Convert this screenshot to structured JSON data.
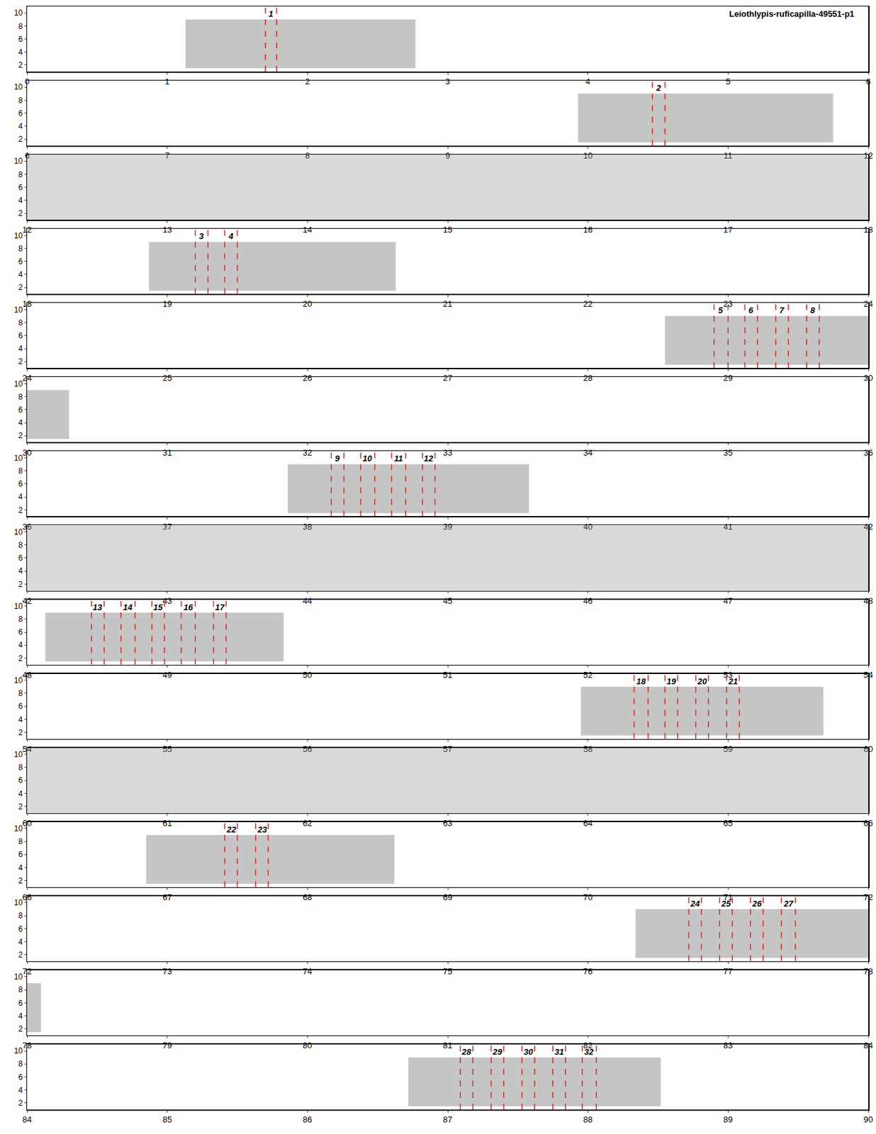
{
  "chart_data": {
    "type": "spectrogram",
    "title": "Leiothlypis-ruficapilla-49551-p1",
    "ylim": [
      1,
      11
    ],
    "yticks": [
      2,
      4,
      6,
      8,
      10
    ],
    "color": "#e02020",
    "panels": [
      {
        "xlim": [
          0,
          6
        ],
        "xticks": [
          0,
          1,
          2,
          3,
          4,
          5,
          6
        ]
      },
      {
        "xlim": [
          6,
          12
        ],
        "xticks": [
          6,
          7,
          8,
          9,
          10,
          11,
          12
        ]
      },
      {
        "xlim": [
          12,
          18
        ],
        "xticks": [
          12,
          13,
          14,
          15,
          16,
          17,
          18
        ]
      },
      {
        "xlim": [
          18,
          24
        ],
        "xticks": [
          18,
          19,
          20,
          21,
          22,
          23,
          24
        ]
      },
      {
        "xlim": [
          24,
          30
        ],
        "xticks": [
          24,
          25,
          26,
          27,
          28,
          29,
          30
        ]
      },
      {
        "xlim": [
          30,
          36
        ],
        "xticks": [
          30,
          31,
          32,
          33,
          34,
          35,
          36
        ]
      },
      {
        "xlim": [
          36,
          42
        ],
        "xticks": [
          36,
          37,
          38,
          39,
          40,
          41,
          42
        ]
      },
      {
        "xlim": [
          42,
          48
        ],
        "xticks": [
          42,
          43,
          44,
          45,
          46,
          47,
          48
        ]
      },
      {
        "xlim": [
          48,
          54
        ],
        "xticks": [
          48,
          49,
          50,
          51,
          52,
          53,
          54
        ]
      },
      {
        "xlim": [
          54,
          60
        ],
        "xticks": [
          54,
          55,
          56,
          57,
          58,
          59,
          60
        ]
      },
      {
        "xlim": [
          60,
          66
        ],
        "xticks": [
          60,
          61,
          62,
          63,
          64,
          65,
          66
        ]
      },
      {
        "xlim": [
          66,
          72
        ],
        "xticks": [
          66,
          67,
          68,
          69,
          70,
          71,
          72
        ]
      },
      {
        "xlim": [
          72,
          78
        ],
        "xticks": [
          72,
          73,
          74,
          75,
          76,
          77,
          78
        ]
      },
      {
        "xlim": [
          78,
          84
        ],
        "xticks": [
          78,
          79,
          80,
          81,
          82,
          83,
          84
        ]
      },
      {
        "xlim": [
          84,
          90
        ],
        "xticks": [
          84,
          85,
          86,
          87,
          88,
          89,
          90
        ]
      }
    ],
    "songs": [
      {
        "start": 1.13,
        "end": 2.77,
        "fmin": 1.5,
        "fmax": 9
      },
      {
        "start": 9.93,
        "end": 11.75,
        "fmin": 1.5,
        "fmax": 9
      },
      {
        "start": 18.87,
        "end": 20.63,
        "fmin": 1.5,
        "fmax": 9
      },
      {
        "start": 28.55,
        "end": 30.3,
        "fmin": 1.5,
        "fmax": 9
      },
      {
        "start": 37.86,
        "end": 39.58,
        "fmin": 1.5,
        "fmax": 9
      },
      {
        "start": 48.13,
        "end": 49.83,
        "fmin": 1.5,
        "fmax": 9
      },
      {
        "start": 57.95,
        "end": 59.68,
        "fmin": 1.5,
        "fmax": 9
      },
      {
        "start": 66.85,
        "end": 68.62,
        "fmin": 1.5,
        "fmax": 9
      },
      {
        "start": 76.34,
        "end": 78.1,
        "fmin": 1.5,
        "fmax": 9
      },
      {
        "start": 86.72,
        "end": 88.52,
        "fmin": 1.5,
        "fmax": 9
      }
    ],
    "noise": [
      {
        "start": 12,
        "end": 18
      },
      {
        "start": 42,
        "end": 48
      },
      {
        "start": 60,
        "end": 66
      }
    ],
    "segments": [
      {
        "label": "1",
        "start": 1.7,
        "end": 1.78
      },
      {
        "label": "2",
        "start": 10.46,
        "end": 10.55
      },
      {
        "label": "3",
        "start": 19.2,
        "end": 19.29
      },
      {
        "label": "4",
        "start": 19.41,
        "end": 19.5
      },
      {
        "label": "5",
        "start": 28.9,
        "end": 29.0
      },
      {
        "label": "6",
        "start": 29.12,
        "end": 29.21
      },
      {
        "label": "7",
        "start": 29.34,
        "end": 29.43
      },
      {
        "label": "8",
        "start": 29.56,
        "end": 29.65
      },
      {
        "label": "9",
        "start": 38.17,
        "end": 38.26
      },
      {
        "label": "10",
        "start": 38.38,
        "end": 38.48
      },
      {
        "label": "11",
        "start": 38.6,
        "end": 38.7
      },
      {
        "label": "12",
        "start": 38.82,
        "end": 38.91
      },
      {
        "label": "13",
        "start": 48.46,
        "end": 48.55
      },
      {
        "label": "14",
        "start": 48.67,
        "end": 48.77
      },
      {
        "label": "15",
        "start": 48.89,
        "end": 48.98
      },
      {
        "label": "16",
        "start": 49.1,
        "end": 49.2
      },
      {
        "label": "17",
        "start": 49.33,
        "end": 49.42
      },
      {
        "label": "18",
        "start": 58.33,
        "end": 58.43
      },
      {
        "label": "19",
        "start": 58.55,
        "end": 58.64
      },
      {
        "label": "20",
        "start": 58.77,
        "end": 58.86
      },
      {
        "label": "21",
        "start": 58.99,
        "end": 59.08
      },
      {
        "label": "22",
        "start": 67.41,
        "end": 67.5
      },
      {
        "label": "23",
        "start": 67.63,
        "end": 67.72
      },
      {
        "label": "24",
        "start": 76.72,
        "end": 76.81
      },
      {
        "label": "25",
        "start": 76.94,
        "end": 77.03
      },
      {
        "label": "26",
        "start": 77.16,
        "end": 77.25
      },
      {
        "label": "27",
        "start": 77.38,
        "end": 77.48
      },
      {
        "label": "28",
        "start": 87.09,
        "end": 87.18
      },
      {
        "label": "29",
        "start": 87.31,
        "end": 87.4
      },
      {
        "label": "30",
        "start": 87.53,
        "end": 87.62
      },
      {
        "label": "31",
        "start": 87.75,
        "end": 87.84
      },
      {
        "label": "32",
        "start": 87.96,
        "end": 88.06
      }
    ]
  }
}
